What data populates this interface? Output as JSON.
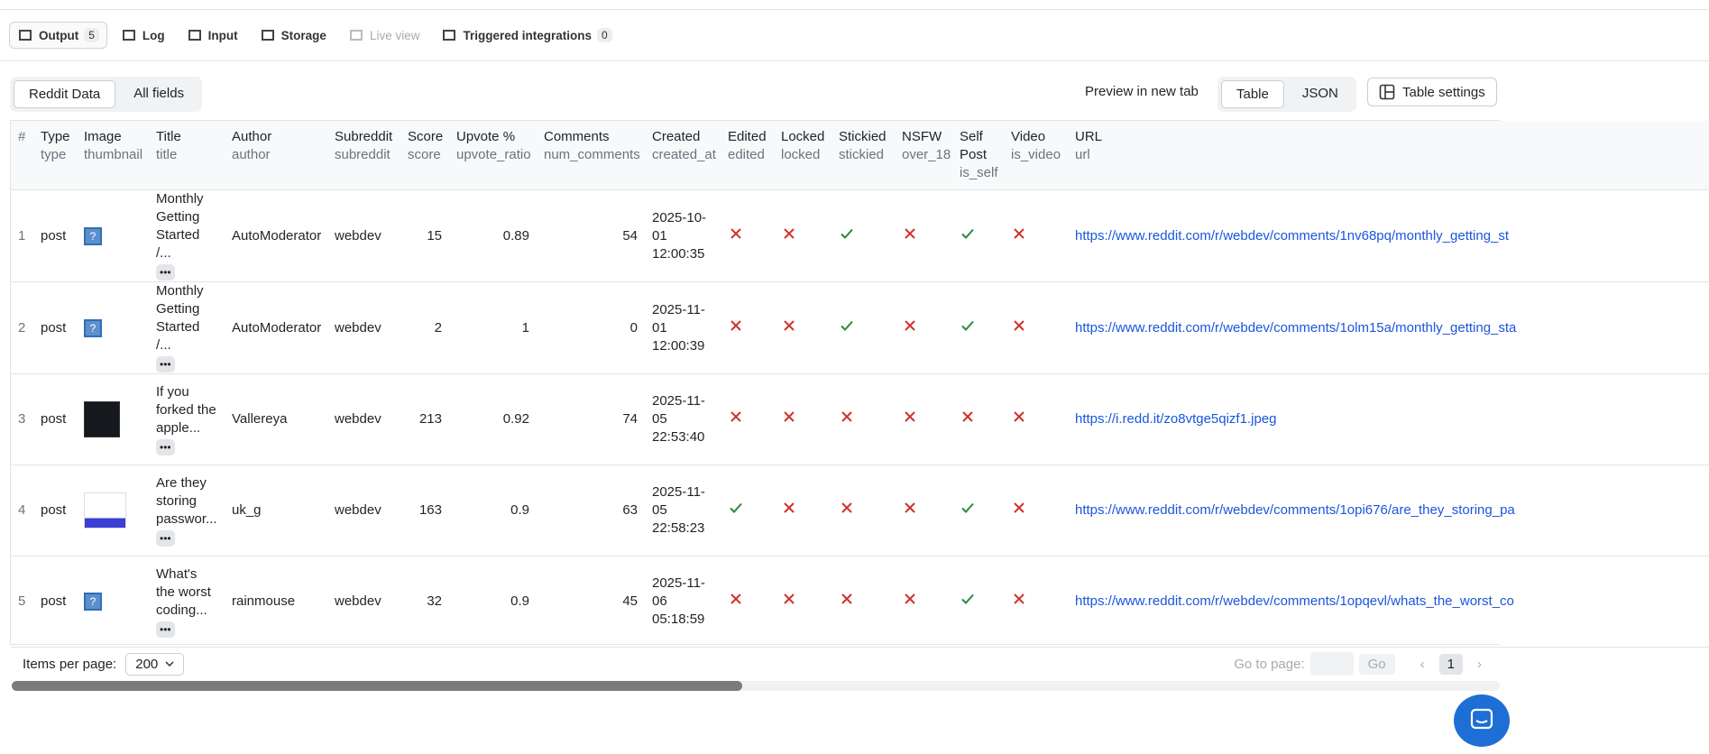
{
  "tabs": [
    {
      "label": "Output",
      "count": "5"
    },
    {
      "label": "Log"
    },
    {
      "label": "Input"
    },
    {
      "label": "Storage"
    },
    {
      "label": "Live view"
    },
    {
      "label": "Triggered integrations",
      "count": "0"
    }
  ],
  "view_toggle": [
    "Reddit Data",
    "All fields"
  ],
  "preview": "Preview in new tab",
  "format_toggle": [
    "Table",
    "JSON"
  ],
  "table_settings": "Table settings",
  "table": {
    "columns": [
      {
        "title": "#"
      },
      {
        "title": "Type",
        "field": "type"
      },
      {
        "title": "Image",
        "field": "thumbnail"
      },
      {
        "title": "Title",
        "field": "title"
      },
      {
        "title": "Author",
        "field": "author"
      },
      {
        "title": "Subreddit",
        "field": "subreddit"
      },
      {
        "title": "Score",
        "field": "score"
      },
      {
        "title": "Upvote %",
        "field": "upvote_ratio"
      },
      {
        "title": "Comments",
        "field": "num_comments"
      },
      {
        "title": "Created",
        "field": "created_at"
      },
      {
        "title": "Edited",
        "field": "edited"
      },
      {
        "title": "Locked",
        "field": "locked"
      },
      {
        "title": "Stickied",
        "field": "stickied"
      },
      {
        "title": "NSFW",
        "field": "over_18"
      },
      {
        "title": "Self Post",
        "field": "is_self"
      },
      {
        "title": "Video",
        "field": "is_video"
      },
      {
        "title": "URL",
        "field": "url"
      }
    ],
    "rows": [
      {
        "n": 1,
        "type": "post",
        "thumbnail": "default",
        "title": "Monthly Getting Started /...",
        "author": "AutoModerator",
        "subreddit": "webdev",
        "score": 15,
        "upvote_ratio": 0.89,
        "num_comments": 54,
        "created_at": "2025-10-01 12:00:35",
        "edited": false,
        "locked": false,
        "stickied": true,
        "over_18": false,
        "is_self": true,
        "is_video": false,
        "url": "https://www.reddit.com/r/webdev/comments/1nv68pq/monthly_getting_st"
      },
      {
        "n": 2,
        "type": "post",
        "thumbnail": "default",
        "title": "Monthly Getting Started /...",
        "author": "AutoModerator",
        "subreddit": "webdev",
        "score": 2,
        "upvote_ratio": 1,
        "num_comments": 0,
        "created_at": "2025-11-01 12:00:39",
        "edited": false,
        "locked": false,
        "stickied": true,
        "over_18": false,
        "is_self": true,
        "is_video": false,
        "url": "https://www.reddit.com/r/webdev/comments/1olm15a/monthly_getting_sta"
      },
      {
        "n": 3,
        "type": "post",
        "thumbnail": "dark",
        "title": "If you forked the apple...",
        "author": "Vallereya",
        "subreddit": "webdev",
        "score": 213,
        "upvote_ratio": 0.92,
        "num_comments": 74,
        "created_at": "2025-11-05 22:53:40",
        "edited": false,
        "locked": false,
        "stickied": false,
        "over_18": false,
        "is_self": false,
        "is_video": false,
        "url": "https://i.redd.it/zo8vtge5qizf1.jpeg"
      },
      {
        "n": 4,
        "type": "post",
        "thumbnail": "light",
        "title": "Are they storing passwor...",
        "author": "uk_g",
        "subreddit": "webdev",
        "score": 163,
        "upvote_ratio": 0.9,
        "num_comments": 63,
        "created_at": "2025-11-05 22:58:23",
        "edited": true,
        "locked": false,
        "stickied": false,
        "over_18": false,
        "is_self": true,
        "is_video": false,
        "url": "https://www.reddit.com/r/webdev/comments/1opi676/are_they_storing_pa"
      },
      {
        "n": 5,
        "type": "post",
        "thumbnail": "default",
        "title": "What's the worst coding...",
        "author": "rainmouse",
        "subreddit": "webdev",
        "score": 32,
        "upvote_ratio": 0.9,
        "num_comments": 45,
        "created_at": "2025-11-06 05:18:59",
        "edited": false,
        "locked": false,
        "stickied": false,
        "over_18": false,
        "is_self": true,
        "is_video": false,
        "url": "https://www.reddit.com/r/webdev/comments/1opqevl/whats_the_worst_co"
      }
    ]
  },
  "footer": {
    "items_label": "Items per page:",
    "items_value": "200",
    "goto_label": "Go to page:",
    "go": "Go",
    "page": "1"
  }
}
